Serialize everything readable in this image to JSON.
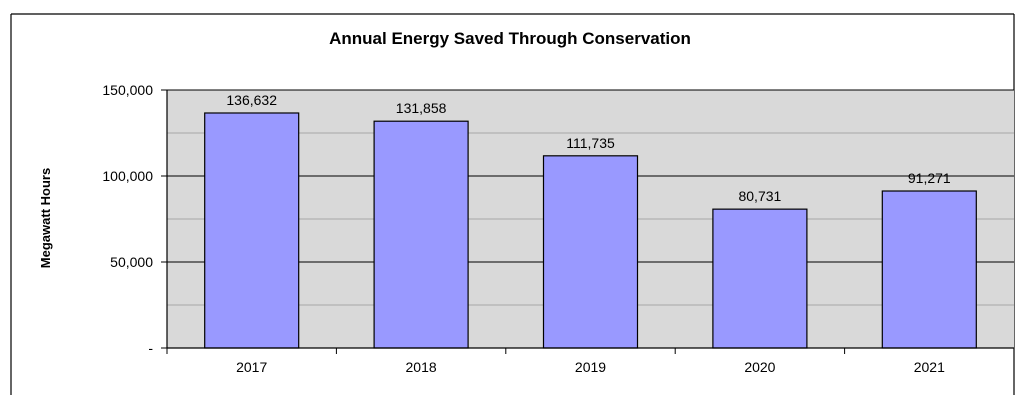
{
  "chart_data": {
    "type": "bar",
    "title": "Annual Energy Saved Through Conservation",
    "xlabel": "",
    "ylabel": "Megawatt Hours",
    "categories": [
      "2017",
      "2018",
      "2019",
      "2020",
      "2021"
    ],
    "values": [
      136632,
      131858,
      111735,
      80731,
      91271
    ],
    "data_labels": [
      "136,632",
      "131,858",
      "111,735",
      "80,731",
      "91,271"
    ],
    "ylim": [
      0,
      150000
    ],
    "y_ticks": [
      0,
      50000,
      100000,
      150000
    ],
    "y_tick_labels": [
      "-",
      "50,000",
      "100,000",
      "150,000"
    ],
    "grid": true,
    "legend": "none",
    "colors": {
      "bar_fill": "#9999ff",
      "bar_stroke": "#000000",
      "plot_background": "#d9d9d9",
      "gridline": "#000000",
      "frame": "#000000"
    }
  }
}
